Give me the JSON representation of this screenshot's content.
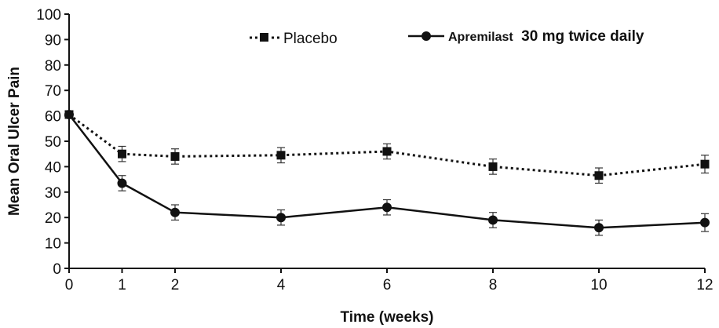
{
  "chart_data": {
    "type": "line",
    "xlabel": "Time (weeks)",
    "ylabel": "Mean Oral Ulcer Pain",
    "xlim": [
      0,
      12
    ],
    "ylim": [
      0,
      100
    ],
    "x_ticks": [
      0,
      1,
      2,
      4,
      6,
      8,
      10,
      12
    ],
    "y_ticks": [
      0,
      10,
      20,
      30,
      40,
      50,
      60,
      70,
      80,
      90,
      100
    ],
    "grid": false,
    "legend_position": "top",
    "series": [
      {
        "name": "Placebo",
        "style": "dotted",
        "marker": "square",
        "color": "#111111",
        "x": [
          0,
          1,
          2,
          4,
          6,
          8,
          10,
          12
        ],
        "values": [
          60.5,
          45,
          44,
          44.5,
          46,
          40,
          36.5,
          41
        ],
        "error": [
          0,
          3,
          3,
          3,
          3,
          3,
          3,
          3.5
        ]
      },
      {
        "name": "Apremilast 30 mg twice daily",
        "name_bold_part": "Apremilast",
        "name_rest": "30 mg twice daily",
        "style": "solid",
        "marker": "circle",
        "color": "#111111",
        "x": [
          0,
          1,
          2,
          4,
          6,
          8,
          10,
          12
        ],
        "values": [
          60.5,
          33.5,
          22,
          20,
          24,
          19,
          16,
          18
        ],
        "error": [
          0,
          3,
          3,
          3,
          3,
          3,
          3,
          3.5
        ]
      }
    ]
  }
}
